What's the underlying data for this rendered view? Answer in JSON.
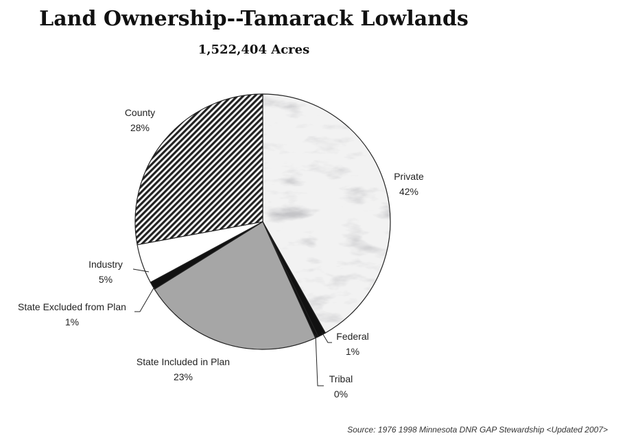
{
  "chart_data": {
    "type": "pie",
    "title": "Land Ownership--Tamarack Lowlands",
    "subtitle": "1,522,404 Acres",
    "slices": [
      {
        "label": "Private",
        "pct_label": "42%",
        "value": 42,
        "fill": "marble"
      },
      {
        "label": "Federal",
        "pct_label": "1%",
        "value": 1,
        "fill": "#111111"
      },
      {
        "label": "Tribal",
        "pct_label": "0%",
        "value": 0.4,
        "fill": "#111111"
      },
      {
        "label": "State Included in Plan",
        "pct_label": "23%",
        "value": 23,
        "fill": "#a6a6a6"
      },
      {
        "label": "State Excluded from Plan",
        "pct_label": "1%",
        "value": 1,
        "fill": "#111111"
      },
      {
        "label": "Industry",
        "pct_label": "5%",
        "value": 5,
        "fill": "#ffffff"
      },
      {
        "label": "County",
        "pct_label": "28%",
        "value": 28,
        "fill": "hatch"
      }
    ],
    "start_angle_deg": 0,
    "direction": "clockwise"
  },
  "source": "Source: 1976 1998 Minnesota DNR GAP Stewardship <Updated 2007>"
}
